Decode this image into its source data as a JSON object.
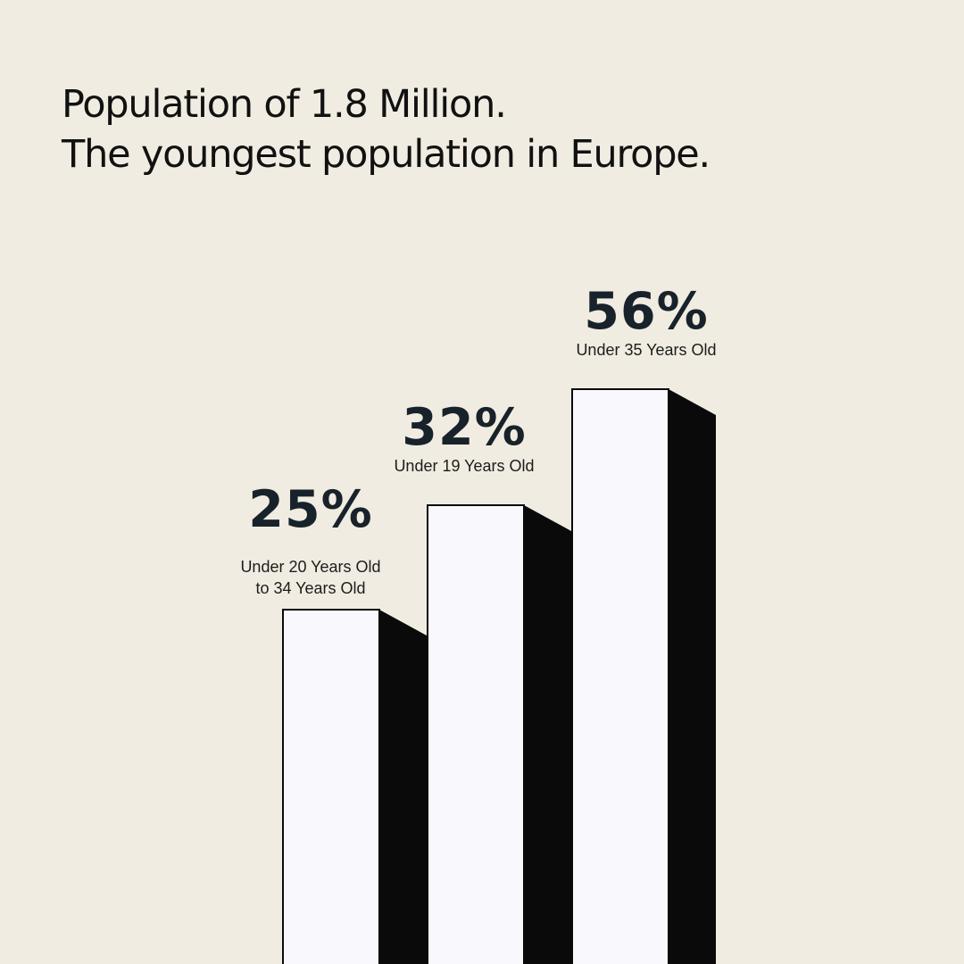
{
  "title_lines": [
    "Population of 1.8 Million.",
    "The youngest population in Europe."
  ],
  "colors": {
    "background": "#f0ece1",
    "bar_front": "#f9f8fc",
    "bar_side": "#0a0a0a",
    "outline": "#0a0a0a",
    "value_text": "#18222a",
    "label_text": "#1c1c1c"
  },
  "chart_data": {
    "type": "bar",
    "categories": [
      "Under 20 Years Old\nto 34 Years Old",
      "Under 19 Years Old",
      "Under 35 Years Old"
    ],
    "values": [
      25,
      32,
      56
    ],
    "value_labels": [
      "25%",
      "32%",
      "56%"
    ],
    "value_unit": "%"
  }
}
